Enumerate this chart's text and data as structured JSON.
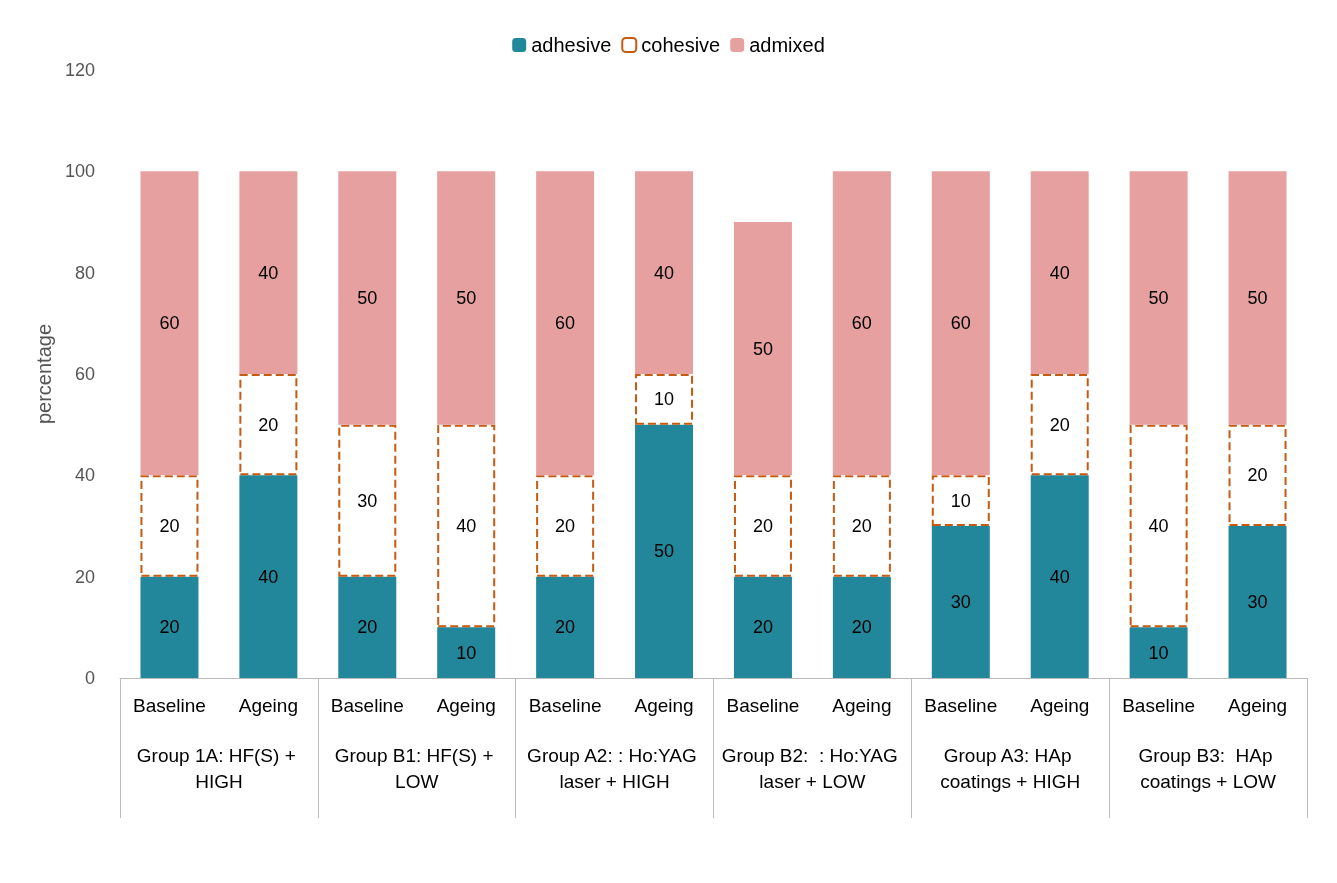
{
  "chart_data": {
    "type": "bar",
    "stacked": true,
    "ylabel": "percentage",
    "categories": [
      "Baseline",
      "Ageing",
      "Baseline",
      "Ageing",
      "Baseline",
      "Ageing",
      "Baseline",
      "Ageing",
      "Baseline",
      "Ageing",
      "Baseline",
      "Ageing"
    ],
    "annotations": [
      "Group 1A: HF(S) + HIGH",
      "Group B1: HF(S) + LOW",
      "Group A2: : Ho:YAG laser + HIGH",
      "Group B2:  : Ho:YAG laser + LOW",
      "Group A3: HAp coatings + HIGH",
      "Group B3:  HAp coatings + LOW"
    ],
    "series": [
      {
        "name": "adhesive",
        "color": "#23879b",
        "values": [
          20,
          40,
          20,
          10,
          20,
          50,
          20,
          20,
          30,
          40,
          10,
          30
        ]
      },
      {
        "name": "cohesive",
        "color": "#c55a11",
        "line_style": "dashed",
        "values": [
          20,
          20,
          30,
          40,
          20,
          10,
          20,
          20,
          10,
          20,
          40,
          20
        ]
      },
      {
        "name": "admixed",
        "color": "#e6a0a0",
        "values": [
          60,
          40,
          50,
          50,
          60,
          40,
          50,
          60,
          60,
          40,
          50,
          50
        ]
      }
    ],
    "data_labels": true,
    "ylim": [
      0,
      120
    ],
    "yticks": [
      0,
      20,
      40,
      60,
      80,
      100,
      120
    ],
    "grid": false,
    "legend": "top"
  }
}
